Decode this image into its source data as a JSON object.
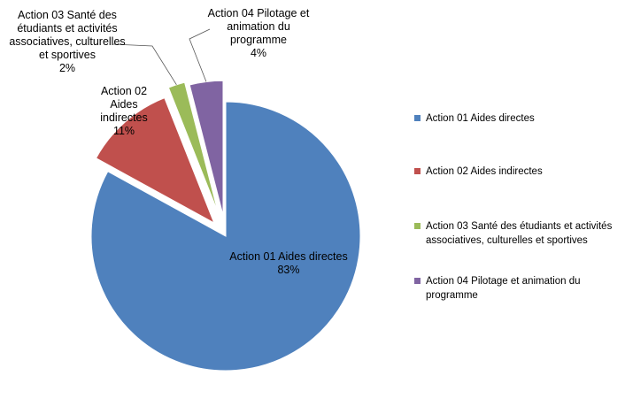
{
  "chart_data": {
    "type": "pie",
    "title": "",
    "slices": [
      {
        "label": "Action 01 Aides directes",
        "value": 83,
        "display": "83%",
        "color": "#4F81BD",
        "label_lines": [
          "Action 01 Aides directes",
          "83%"
        ],
        "exploded": false
      },
      {
        "label": "Action 02 Aides indirectes",
        "value": 11,
        "display": "11%",
        "color": "#C0504D",
        "label_lines": [
          "Action 02",
          "Aides",
          "indirectes",
          "11%"
        ],
        "exploded": true
      },
      {
        "label": "Action 03 Santé des étudiants et activités associatives, culturelles et sportives",
        "value": 2,
        "display": "2%",
        "color": "#9BBB59",
        "label_lines": [
          "Action 03 Santé des",
          "étudiants et activités",
          "associatives, culturelles",
          "et sportives",
          "2%"
        ],
        "exploded": true
      },
      {
        "label": "Action 04 Pilotage et animation du programme",
        "value": 4,
        "display": "4%",
        "color": "#8064A2",
        "label_lines": [
          "Action 04 Pilotage et",
          "animation du",
          "programme",
          "4%"
        ],
        "exploded": true
      }
    ],
    "legend": {
      "position": "right",
      "entries": [
        {
          "lines": [
            "Action 01 Aides directes"
          ],
          "color": "#4F81BD"
        },
        {
          "lines": [
            "Action 02 Aides indirectes"
          ],
          "color": "#C0504D"
        },
        {
          "lines": [
            "Action 03 Santé des étudiants et activités",
            "associatives, culturelles et sportives"
          ],
          "color": "#9BBB59"
        },
        {
          "lines": [
            "Action 04 Pilotage et animation du",
            "programme"
          ],
          "color": "#8064A2"
        }
      ]
    }
  }
}
